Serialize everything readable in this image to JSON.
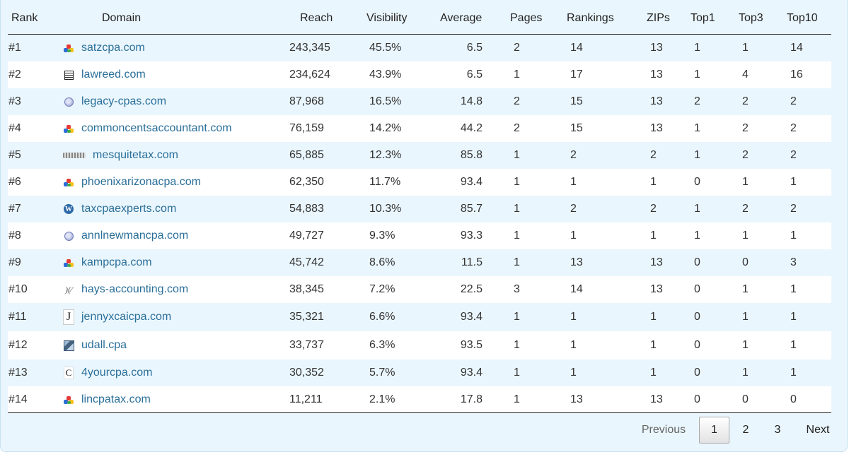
{
  "headers": {
    "rank": "Rank",
    "domain": "Domain",
    "reach": "Reach",
    "visibility": "Visibility",
    "average": "Average",
    "pages": "Pages",
    "rankings": "Rankings",
    "zips": "ZIPs",
    "top1": "Top1",
    "top3": "Top3",
    "top10": "Top10"
  },
  "rows": [
    {
      "rank": "#1",
      "icon": "colorful-blocks-icon",
      "domain": "satzcpa.com",
      "reach": "243,345",
      "visibility": "45.5%",
      "average": "6.5",
      "pages": "2",
      "rankings": "14",
      "zips": "13",
      "top1": "1",
      "top3": "1",
      "top10": "14"
    },
    {
      "rank": "#2",
      "icon": "newspaper-icon",
      "domain": "lawreed.com",
      "reach": "234,624",
      "visibility": "43.9%",
      "average": "6.5",
      "pages": "1",
      "rankings": "17",
      "zips": "13",
      "top1": "1",
      "top3": "4",
      "top10": "16"
    },
    {
      "rank": "#3",
      "icon": "globe-icon",
      "domain": "legacy-cpas.com",
      "reach": "87,968",
      "visibility": "16.5%",
      "average": "14.8",
      "pages": "2",
      "rankings": "15",
      "zips": "13",
      "top1": "2",
      "top3": "2",
      "top10": "2"
    },
    {
      "rank": "#4",
      "icon": "colorful-blocks-icon",
      "domain": "commoncentsaccountant.com",
      "reach": "76,159",
      "visibility": "14.2%",
      "average": "44.2",
      "pages": "2",
      "rankings": "15",
      "zips": "13",
      "top1": "1",
      "top3": "2",
      "top10": "2"
    },
    {
      "rank": "#5",
      "icon": "mesquite-logo-icon",
      "domain": "mesquitetax.com",
      "reach": "65,885",
      "visibility": "12.3%",
      "average": "85.8",
      "pages": "1",
      "rankings": "2",
      "zips": "2",
      "top1": "1",
      "top3": "2",
      "top10": "2"
    },
    {
      "rank": "#6",
      "icon": "colorful-blocks-icon",
      "domain": "phoenixarizonacpa.com",
      "reach": "62,350",
      "visibility": "11.7%",
      "average": "93.4",
      "pages": "1",
      "rankings": "1",
      "zips": "1",
      "top1": "0",
      "top3": "1",
      "top10": "1"
    },
    {
      "rank": "#7",
      "icon": "wordpress-icon",
      "domain": "taxcpaexperts.com",
      "reach": "54,883",
      "visibility": "10.3%",
      "average": "85.7",
      "pages": "1",
      "rankings": "2",
      "zips": "2",
      "top1": "1",
      "top3": "2",
      "top10": "2"
    },
    {
      "rank": "#8",
      "icon": "globe-icon",
      "domain": "annlnewmancpa.com",
      "reach": "49,727",
      "visibility": "9.3%",
      "average": "93.3",
      "pages": "1",
      "rankings": "1",
      "zips": "1",
      "top1": "1",
      "top3": "1",
      "top10": "1"
    },
    {
      "rank": "#9",
      "icon": "colorful-blocks-icon",
      "domain": "kampcpa.com",
      "reach": "45,742",
      "visibility": "8.6%",
      "average": "11.5",
      "pages": "1",
      "rankings": "13",
      "zips": "13",
      "top1": "0",
      "top3": "0",
      "top10": "3"
    },
    {
      "rank": "#10",
      "icon": "hays-logo-icon",
      "domain": "hays-accounting.com",
      "reach": "38,345",
      "visibility": "7.2%",
      "average": "22.5",
      "pages": "3",
      "rankings": "14",
      "zips": "13",
      "top1": "0",
      "top3": "1",
      "top10": "1"
    },
    {
      "rank": "#11",
      "icon": "j-letter-icon",
      "domain": "jennyxcaicpa.com",
      "reach": "35,321",
      "visibility": "6.6%",
      "average": "93.4",
      "pages": "1",
      "rankings": "1",
      "zips": "1",
      "top1": "0",
      "top3": "1",
      "top10": "1"
    },
    {
      "rank": "#12",
      "icon": "building-photo-icon",
      "domain": "udall.cpa",
      "reach": "33,737",
      "visibility": "6.3%",
      "average": "93.5",
      "pages": "1",
      "rankings": "1",
      "zips": "1",
      "top1": "0",
      "top3": "1",
      "top10": "1"
    },
    {
      "rank": "#13",
      "icon": "c-letter-icon",
      "domain": "4yourcpa.com",
      "reach": "30,352",
      "visibility": "5.7%",
      "average": "93.4",
      "pages": "1",
      "rankings": "1",
      "zips": "1",
      "top1": "0",
      "top3": "1",
      "top10": "1"
    },
    {
      "rank": "#14",
      "icon": "colorful-blocks-icon",
      "domain": "lincpatax.com",
      "reach": "11,211",
      "visibility": "2.1%",
      "average": "17.8",
      "pages": "1",
      "rankings": "13",
      "zips": "13",
      "top1": "0",
      "top3": "0",
      "top10": "0"
    }
  ],
  "pagination": {
    "previous": "Previous",
    "pages": [
      "1",
      "2",
      "3"
    ],
    "current": "1",
    "next": "Next"
  },
  "colors": {
    "link": "#2a6f9a",
    "stripe": "#eaf6fd",
    "background": "#ffffff"
  }
}
